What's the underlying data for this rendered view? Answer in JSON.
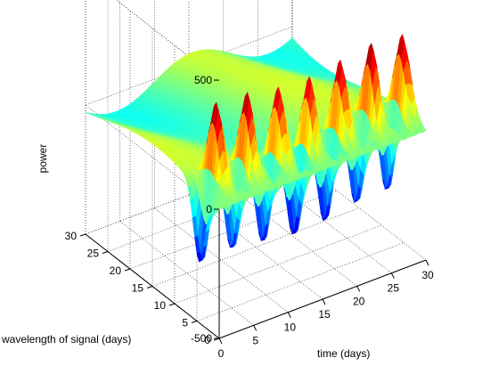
{
  "chart_data": {
    "type": "surface3d",
    "title": "",
    "xlabel": "time (days)",
    "ylabel": "wavelength of signal (days)",
    "zlabel": "power",
    "xlim": [
      0,
      30
    ],
    "ylim": [
      0,
      30
    ],
    "zlim": [
      -500,
      500
    ],
    "x_ticks": [
      "0",
      "5",
      "10",
      "15",
      "20",
      "25",
      "30"
    ],
    "y_ticks": [
      "0",
      "5",
      "10",
      "15",
      "20",
      "25",
      "30"
    ],
    "z_ticks": [
      "-500",
      "0",
      "500"
    ],
    "colormap": "jet",
    "grid": "dotted",
    "surface": {
      "oscillation_period_days": 4.5,
      "peak_amplitude": 300,
      "peak_wavelength_days": 4.5,
      "peak_band_width_days": 1.8,
      "background_ripple_amplitude": 35,
      "high_wavelength_bump_amplitude": 80
    }
  }
}
